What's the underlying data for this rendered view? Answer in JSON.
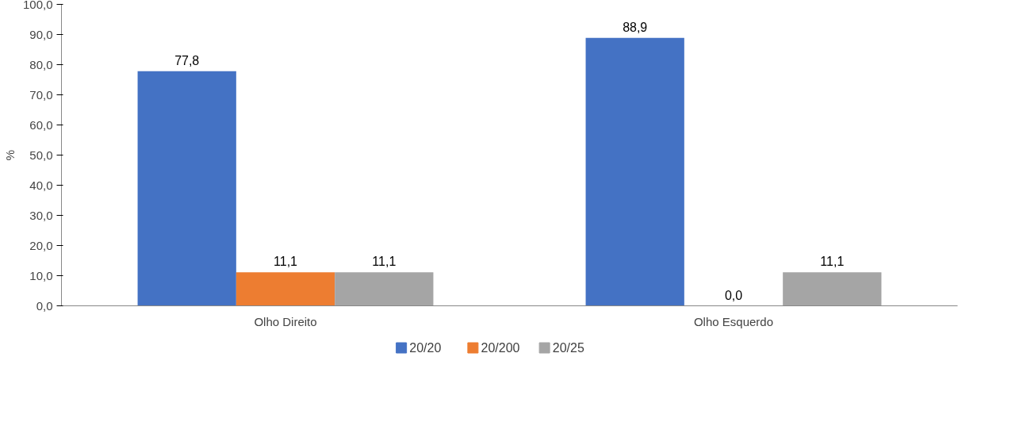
{
  "chart_data": {
    "type": "bar",
    "ylabel": "%",
    "categories": [
      "Olho Direito",
      "Olho Esquerdo"
    ],
    "series": [
      {
        "name": "20/20",
        "color": "#4472c4",
        "values": [
          77.8,
          88.9
        ],
        "value_labels": [
          "77,8",
          "88,9"
        ]
      },
      {
        "name": "20/200",
        "color": "#ed7d31",
        "values": [
          11.1,
          0.0
        ],
        "value_labels": [
          "11,1",
          "0,0"
        ]
      },
      {
        "name": "20/25",
        "color": "#a5a5a5",
        "values": [
          11.1,
          11.1
        ],
        "value_labels": [
          "11,1",
          "11,1"
        ]
      }
    ],
    "ylim": [
      0,
      100
    ],
    "yticks": [
      {
        "value": 0,
        "label": "0,0"
      },
      {
        "value": 10,
        "label": "10,0"
      },
      {
        "value": 20,
        "label": "20,0"
      },
      {
        "value": 30,
        "label": "30,0"
      },
      {
        "value": 40,
        "label": "40,0"
      },
      {
        "value": 50,
        "label": "50,0"
      },
      {
        "value": 60,
        "label": "60,0"
      },
      {
        "value": 70,
        "label": "70,0"
      },
      {
        "value": 80,
        "label": "80,0"
      },
      {
        "value": 90,
        "label": "90,0"
      },
      {
        "value": 100,
        "label": "100,0"
      }
    ],
    "grid": false,
    "legend": "bottom"
  }
}
